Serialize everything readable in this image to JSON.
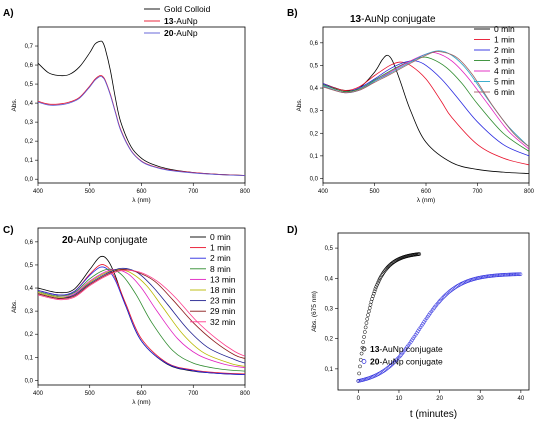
{
  "chart_data": [
    {
      "panel_label": "A)",
      "type": "line",
      "title": "",
      "xlabel": "λ (nm)",
      "ylabel": "Abs.",
      "xlim": [
        400,
        800
      ],
      "ylim": [
        -0.02,
        0.8
      ],
      "x_ticks": [
        "400",
        "500",
        "600",
        "700",
        "800"
      ],
      "y_ticks": [
        "0,0",
        "0,1",
        "0,2",
        "0,3",
        "0,4",
        "0,5",
        "0,6",
        "0,7"
      ],
      "legend_position": "top-right",
      "legend": [
        {
          "bold": "",
          "text": "Gold Colloid",
          "color": "#000000"
        },
        {
          "bold": "13",
          "text": "-AuNp",
          "color": "#e8102a"
        },
        {
          "bold": "20",
          "text": "-AuNp",
          "color": "#5a5ad6"
        }
      ],
      "series": [
        {
          "color": "#000000",
          "x": [
            400,
            420,
            440,
            460,
            480,
            500,
            510,
            520,
            525,
            530,
            540,
            550,
            560,
            580,
            600,
            620,
            650,
            700,
            750,
            800
          ],
          "y": [
            0.61,
            0.56,
            0.545,
            0.55,
            0.59,
            0.665,
            0.71,
            0.725,
            0.72,
            0.685,
            0.57,
            0.42,
            0.3,
            0.17,
            0.11,
            0.08,
            0.055,
            0.035,
            0.025,
            0.02
          ]
        },
        {
          "color": "#e8102a",
          "x": [
            400,
            420,
            440,
            460,
            480,
            500,
            510,
            520,
            525,
            530,
            540,
            550,
            560,
            580,
            600,
            620,
            650,
            700,
            750,
            800
          ],
          "y": [
            0.41,
            0.395,
            0.395,
            0.405,
            0.43,
            0.49,
            0.525,
            0.545,
            0.54,
            0.52,
            0.445,
            0.35,
            0.26,
            0.15,
            0.095,
            0.07,
            0.05,
            0.035,
            0.025,
            0.02
          ]
        },
        {
          "color": "#5a5ad6",
          "x": [
            400,
            420,
            440,
            460,
            480,
            500,
            510,
            520,
            525,
            530,
            540,
            550,
            560,
            580,
            600,
            620,
            650,
            700,
            750,
            800
          ],
          "y": [
            0.405,
            0.39,
            0.39,
            0.4,
            0.425,
            0.485,
            0.52,
            0.54,
            0.535,
            0.515,
            0.44,
            0.345,
            0.255,
            0.148,
            0.093,
            0.068,
            0.048,
            0.033,
            0.024,
            0.019
          ]
        }
      ]
    },
    {
      "panel_label": "B)",
      "type": "line",
      "title_bold": "13",
      "title": "-AuNp conjugate",
      "xlabel": "λ (nm)",
      "ylabel": "Abs.",
      "xlim": [
        400,
        800
      ],
      "ylim": [
        -0.02,
        0.67
      ],
      "x_ticks": [
        "400",
        "500",
        "600",
        "700",
        "800"
      ],
      "y_ticks": [
        "0,0",
        "0,1",
        "0,2",
        "0,3",
        "0,4",
        "0,5",
        "0,6"
      ],
      "legend_position": "top-right",
      "legend": [
        {
          "text": "0 min",
          "color": "#000000"
        },
        {
          "text": "1 min",
          "color": "#e8102a"
        },
        {
          "text": "2 min",
          "color": "#2a2ae0"
        },
        {
          "text": "3 min",
          "color": "#2e8b2e"
        },
        {
          "text": "4 min",
          "color": "#e020c0"
        },
        {
          "text": "5 min",
          "color": "#2aa6c8"
        },
        {
          "text": "6 min",
          "color": "#a06060"
        }
      ],
      "series": [
        {
          "color": "#000000",
          "x": [
            400,
            440,
            470,
            500,
            515,
            525,
            535,
            550,
            570,
            600,
            650,
            700,
            750,
            800
          ],
          "y": [
            0.42,
            0.39,
            0.4,
            0.47,
            0.525,
            0.545,
            0.52,
            0.43,
            0.3,
            0.16,
            0.07,
            0.04,
            0.028,
            0.022
          ]
        },
        {
          "color": "#e8102a",
          "x": [
            400,
            440,
            470,
            500,
            530,
            550,
            570,
            600,
            630,
            650,
            700,
            750,
            800
          ],
          "y": [
            0.42,
            0.39,
            0.405,
            0.455,
            0.5,
            0.515,
            0.5,
            0.44,
            0.34,
            0.27,
            0.15,
            0.09,
            0.06
          ]
        },
        {
          "color": "#2a2ae0",
          "x": [
            400,
            440,
            470,
            500,
            530,
            560,
            580,
            600,
            630,
            660,
            700,
            750,
            800
          ],
          "y": [
            0.42,
            0.385,
            0.4,
            0.44,
            0.485,
            0.515,
            0.52,
            0.5,
            0.44,
            0.36,
            0.25,
            0.15,
            0.1
          ]
        },
        {
          "color": "#2e8b2e",
          "x": [
            400,
            440,
            470,
            500,
            530,
            560,
            590,
            610,
            640,
            670,
            700,
            750,
            800
          ],
          "y": [
            0.415,
            0.385,
            0.395,
            0.435,
            0.475,
            0.51,
            0.535,
            0.53,
            0.49,
            0.42,
            0.33,
            0.2,
            0.12
          ]
        },
        {
          "color": "#e020c0",
          "x": [
            400,
            440,
            470,
            500,
            530,
            570,
            600,
            620,
            650,
            680,
            720,
            760,
            800
          ],
          "y": [
            0.41,
            0.38,
            0.39,
            0.43,
            0.47,
            0.52,
            0.55,
            0.555,
            0.52,
            0.45,
            0.33,
            0.21,
            0.13
          ]
        },
        {
          "color": "#2aa6c8",
          "x": [
            400,
            440,
            470,
            500,
            530,
            570,
            600,
            625,
            650,
            680,
            720,
            760,
            800
          ],
          "y": [
            0.41,
            0.38,
            0.39,
            0.43,
            0.465,
            0.515,
            0.55,
            0.565,
            0.545,
            0.48,
            0.35,
            0.23,
            0.14
          ]
        },
        {
          "color": "#a06060",
          "x": [
            400,
            440,
            470,
            500,
            530,
            570,
            610,
            630,
            660,
            690,
            730,
            770,
            800
          ],
          "y": [
            0.405,
            0.38,
            0.39,
            0.425,
            0.46,
            0.51,
            0.555,
            0.56,
            0.535,
            0.46,
            0.32,
            0.2,
            0.14
          ]
        }
      ]
    },
    {
      "panel_label": "C)",
      "type": "line",
      "title_bold": "20",
      "title": "-AuNp conjugate",
      "xlabel": "λ (nm)",
      "ylabel": "Abs.",
      "xlim": [
        400,
        800
      ],
      "ylim": [
        -0.02,
        0.66
      ],
      "x_ticks": [
        "400",
        "500",
        "600",
        "700",
        "800"
      ],
      "y_ticks": [
        "0,0",
        "0,1",
        "0,2",
        "0,3",
        "0,4",
        "0,5",
        "0,6"
      ],
      "legend_position": "top-right",
      "legend": [
        {
          "text": "0 min",
          "color": "#000000"
        },
        {
          "text": "1 min",
          "color": "#e8102a"
        },
        {
          "text": "2 min",
          "color": "#2a2ae0"
        },
        {
          "text": "8 min",
          "color": "#2e8b2e"
        },
        {
          "text": "13 min",
          "color": "#e020c0"
        },
        {
          "text": "18 min",
          "color": "#b8b800"
        },
        {
          "text": "23 min",
          "color": "#202090"
        },
        {
          "text": "29 min",
          "color": "#8a1a1a"
        },
        {
          "text": "32 min",
          "color": "#ff3c8c"
        }
      ],
      "series": [
        {
          "color": "#000000",
          "x": [
            400,
            440,
            470,
            500,
            520,
            535,
            550,
            570,
            600,
            650,
            700,
            750,
            800
          ],
          "y": [
            0.4,
            0.38,
            0.395,
            0.48,
            0.535,
            0.52,
            0.45,
            0.32,
            0.17,
            0.07,
            0.04,
            0.03,
            0.025
          ]
        },
        {
          "color": "#e8102a",
          "x": [
            400,
            440,
            470,
            500,
            520,
            535,
            550,
            570,
            600,
            650,
            700,
            750,
            800
          ],
          "y": [
            0.39,
            0.37,
            0.385,
            0.46,
            0.5,
            0.49,
            0.44,
            0.33,
            0.18,
            0.075,
            0.045,
            0.033,
            0.028
          ]
        },
        {
          "color": "#2a2ae0",
          "x": [
            400,
            440,
            470,
            500,
            520,
            535,
            550,
            570,
            600,
            650,
            700,
            750,
            800
          ],
          "y": [
            0.39,
            0.37,
            0.385,
            0.455,
            0.49,
            0.48,
            0.43,
            0.32,
            0.17,
            0.072,
            0.042,
            0.03,
            0.025
          ]
        },
        {
          "color": "#2e8b2e",
          "x": [
            400,
            440,
            470,
            500,
            525,
            545,
            565,
            590,
            620,
            660,
            700,
            750,
            800
          ],
          "y": [
            0.385,
            0.365,
            0.38,
            0.44,
            0.475,
            0.48,
            0.45,
            0.37,
            0.25,
            0.13,
            0.075,
            0.05,
            0.04
          ]
        },
        {
          "color": "#e020c0",
          "x": [
            400,
            440,
            470,
            500,
            530,
            550,
            575,
            600,
            630,
            670,
            710,
            760,
            800
          ],
          "y": [
            0.38,
            0.36,
            0.375,
            0.43,
            0.47,
            0.48,
            0.46,
            0.4,
            0.3,
            0.18,
            0.11,
            0.07,
            0.055
          ]
        },
        {
          "color": "#b8b800",
          "x": [
            400,
            440,
            470,
            500,
            530,
            555,
            580,
            610,
            640,
            680,
            720,
            770,
            800
          ],
          "y": [
            0.38,
            0.36,
            0.37,
            0.425,
            0.465,
            0.48,
            0.465,
            0.41,
            0.32,
            0.2,
            0.12,
            0.075,
            0.06
          ]
        },
        {
          "color": "#202090",
          "x": [
            400,
            440,
            470,
            500,
            530,
            560,
            590,
            620,
            650,
            690,
            730,
            780,
            800
          ],
          "y": [
            0.375,
            0.355,
            0.37,
            0.42,
            0.46,
            0.485,
            0.47,
            0.41,
            0.33,
            0.22,
            0.14,
            0.09,
            0.075
          ]
        },
        {
          "color": "#8a1a1a",
          "x": [
            400,
            440,
            470,
            500,
            530,
            560,
            590,
            625,
            660,
            700,
            740,
            780,
            800
          ],
          "y": [
            0.375,
            0.355,
            0.365,
            0.415,
            0.455,
            0.48,
            0.47,
            0.43,
            0.35,
            0.25,
            0.17,
            0.11,
            0.095
          ]
        },
        {
          "color": "#ff3c8c",
          "x": [
            400,
            440,
            470,
            500,
            530,
            560,
            595,
            630,
            665,
            705,
            745,
            780,
            800
          ],
          "y": [
            0.37,
            0.35,
            0.36,
            0.41,
            0.45,
            0.475,
            0.47,
            0.43,
            0.36,
            0.26,
            0.18,
            0.125,
            0.105
          ]
        }
      ]
    },
    {
      "panel_label": "D)",
      "type": "scatter",
      "title": "",
      "xlabel": "t (minutes)",
      "ylabel": "Abs. (675 nm)",
      "xlim": [
        -5,
        42
      ],
      "ylim": [
        0.03,
        0.55
      ],
      "x_ticks": [
        "0",
        "10",
        "20",
        "30",
        "40"
      ],
      "y_ticks": [
        "0,1",
        "0,2",
        "0,3",
        "0,4",
        "0,5"
      ],
      "legend_position": "bottom-right",
      "legend": [
        {
          "bold": "13",
          "text": "-AuNp conjugate",
          "color": "#000000"
        },
        {
          "bold": "20",
          "text": "-AuNp conjugate",
          "color": "#2a2ae0"
        }
      ],
      "series": [
        {
          "color": "#000000",
          "model": "saturating",
          "t_start": 0,
          "t_end": 15,
          "step": 0.2,
          "y0": 0.06,
          "ymax": 0.485,
          "rate": 0.3
        },
        {
          "color": "#2a2ae0",
          "model": "sigmoid",
          "t_start": 0,
          "t_end": 40,
          "step": 0.3,
          "y0": 0.06,
          "ymax": 0.415,
          "midpoint": 15,
          "width": 4.5
        }
      ]
    }
  ]
}
